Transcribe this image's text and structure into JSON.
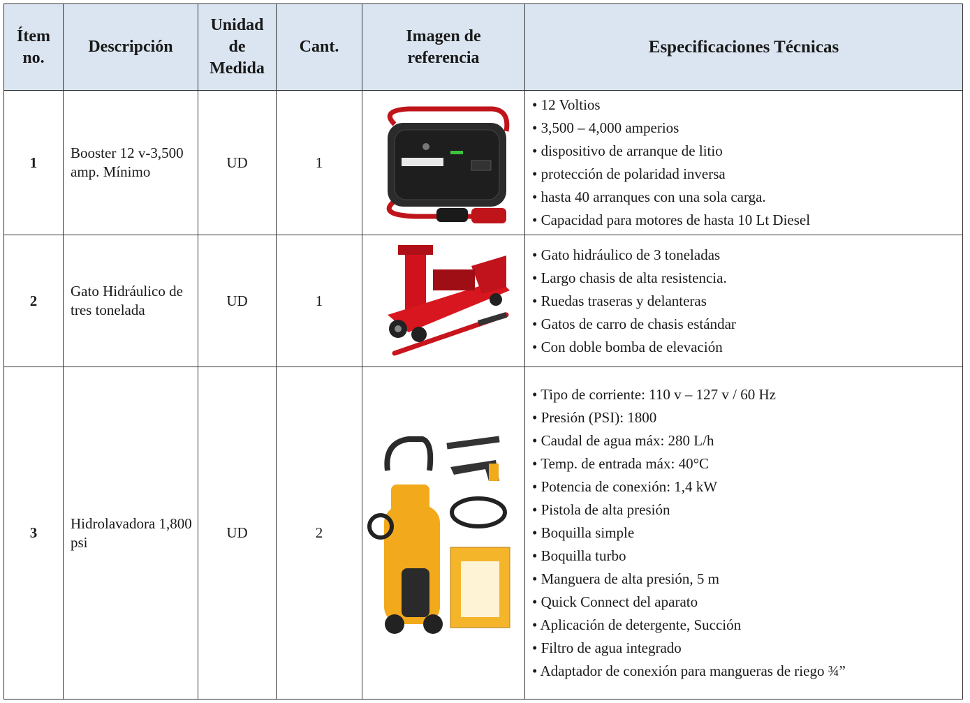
{
  "table": {
    "header": [
      "Ítem no.",
      "Descripción",
      "Unidad de Medida",
      "Cant.",
      "Imagen de referencia",
      "Especificaciones Técnicas"
    ],
    "rows": [
      {
        "item": "1",
        "description": "Booster 12 v-3,500 amp. Mínimo",
        "unit": "UD",
        "quantity": "1",
        "specs": [
          "• 12 Voltios",
          "• 3,500 – 4,000 amperios",
          "• dispositivo de arranque de litio",
          "• protección de polaridad inversa",
          "• hasta 40 arranques con una sola carga.",
          "• Capacidad para motores de hasta 10 Lt  Diesel"
        ]
      },
      {
        "item": "2",
        "description": "Gato Hidráulico de tres tonelada",
        "unit": "UD",
        "quantity": "1",
        "specs": [
          "• Gato hidráulico de 3 toneladas",
          "• Largo chasis de alta resistencia.",
          "• Ruedas traseras y delanteras",
          "• Gatos de carro de chasis estándar",
          "• Con doble bomba de elevación"
        ]
      },
      {
        "item": "3",
        "description": "Hidrolavadora 1,800 psi",
        "unit": "UD",
        "quantity": "2",
        "specs": [
          "• Tipo de corriente: 110 v – 127 v / 60 Hz",
          "• Presión (PSI):   1800",
          "• Caudal de agua máx:  280 L/h",
          "• Temp. de entrada máx: 40°C",
          "• Potencia de conexión:  1,4 kW",
          "• Pistola de alta presión",
          "• Boquilla simple",
          "• Boquilla turbo",
          "• Manguera de alta presión, 5 m",
          "• Quick Connect del aparato",
          "• Aplicación de detergente, Succión",
          "• Filtro de agua integrado",
          "• Adaptador de conexión para mangueras de riego ¾”"
        ]
      }
    ]
  }
}
